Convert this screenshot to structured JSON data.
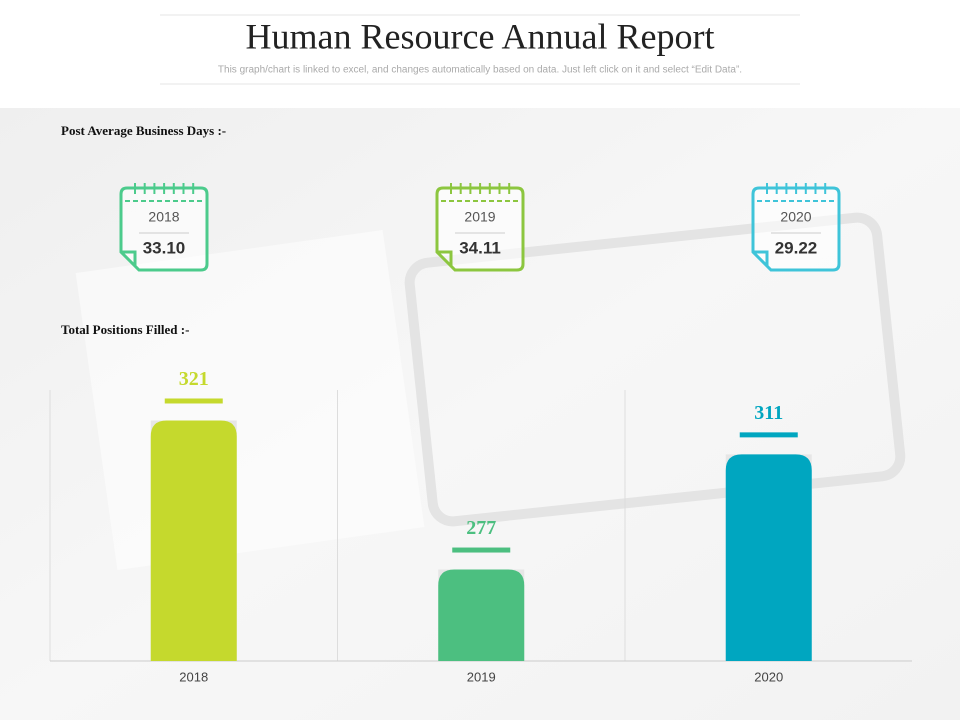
{
  "header": {
    "title": "Human Resource Annual Report",
    "subtitle": "This graph/chart is linked to excel, and changes automatically based on data. Just left click on it and select “Edit Data”."
  },
  "sections": {
    "business_days": "Post Average Business Days :-",
    "positions": "Total Positions Filled :-"
  },
  "calendars": [
    {
      "year": "2018",
      "value": "33.10",
      "color": "#4ccb8c"
    },
    {
      "year": "2019",
      "value": "34.11",
      "color": "#8cc63f"
    },
    {
      "year": "2020",
      "value": "29.22",
      "color": "#3fc4d9"
    }
  ],
  "chart_data": {
    "type": "bar",
    "categories": [
      "2018",
      "2019",
      "2020"
    ],
    "values": [
      321,
      277,
      311
    ],
    "colors": [
      "#c5d92d",
      "#4cbf80",
      "#00a6c0"
    ],
    "ylim": [
      250,
      330
    ]
  }
}
